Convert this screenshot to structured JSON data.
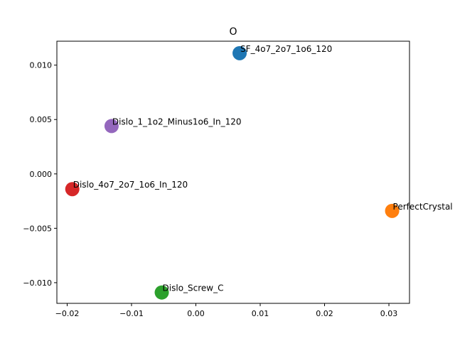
{
  "chart_data": {
    "type": "scatter",
    "title": "O",
    "xlabel": "",
    "ylabel": "",
    "xlim": [
      -0.0216,
      0.0332
    ],
    "ylim": [
      -0.0119,
      0.0122
    ],
    "x_ticks": [
      -0.02,
      -0.01,
      0.0,
      0.01,
      0.02,
      0.03
    ],
    "x_tick_labels": [
      "−0.02",
      "−0.01",
      "0.00",
      "0.01",
      "0.02",
      "0.03"
    ],
    "y_ticks": [
      0.01,
      0.005,
      0.0,
      -0.005,
      -0.01
    ],
    "y_tick_labels": [
      "0.010",
      "0.005",
      "0.000",
      "−0.005",
      "−0.010"
    ],
    "grid": false,
    "points": [
      {
        "label": "SF_4o7_2o7_1o6_120",
        "x": 0.0068,
        "y": 0.0111,
        "color": "#1f77b4"
      },
      {
        "label": "PerfectCrystal",
        "x": 0.0305,
        "y": -0.0034,
        "color": "#ff7f0e"
      },
      {
        "label": "Dislo_Screw_C",
        "x": -0.0053,
        "y": -0.0109,
        "color": "#2ca02c"
      },
      {
        "label": "Dislo_4o7_2o7_1o6_In_120",
        "x": -0.0192,
        "y": -0.0014,
        "color": "#d62728"
      },
      {
        "label": "Dislo_1_1o2_Minus1o6_In_120",
        "x": -0.0131,
        "y": 0.0044,
        "color": "#9467bd"
      }
    ]
  }
}
